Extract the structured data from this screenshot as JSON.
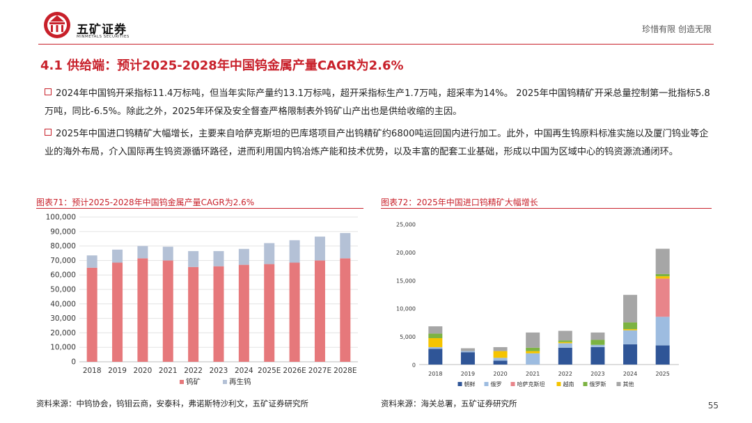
{
  "header": {
    "brand_cn": "五矿证券",
    "brand_en": "MINMETALS SECURITIES",
    "slogan": "珍惜有限  创造无限"
  },
  "title": "4.1 供给端：预计2025-2028年中国钨金属产量CAGR为2.6%",
  "bullets": [
    "2024年中国钨开采指标11.4万标吨，但当年实际产量约13.1万标吨，超开采指标生产1.7万吨，超采率为14%。 2025年中国钨精矿开采总量控制第一批指标5.8万吨，同比-6.5%。除此之外，2025年环保及安全督查严格限制表外钨矿山产出也是供给收缩的主因。",
    "2025年中国进口钨精矿大幅增长，主要来自哈萨克斯坦的巴库塔项目产出钨精矿约6800吨运回国内进行加工。此外，中国再生钨原料标准实施以及厦门钨业等企业的海外布局，介入国际再生钨资源循环路径，进而利用国内钨冶炼产能和技术优势，以及丰富的配套工业基础，形成以中国为区域中心的钨资源流通闭环。"
  ],
  "chart1_title": "图表71：预计2025-2028年中国钨金属产量CAGR为2.6%",
  "chart2_title": "图表72：2025年中国进口钨精矿大幅增长",
  "source1": "资料来源：中钨协会，钨钼云商，安泰科，弗诺斯特沙利文，五矿证券研究所",
  "source2": "资料来源：海关总署，五矿证券研究所",
  "page_number": "55",
  "chart_data": [
    {
      "type": "bar",
      "stacked": true,
      "title": "预计2025-2028年中国钨金属产量CAGR为2.6%",
      "categories": [
        "2018",
        "2019",
        "2020",
        "2021",
        "2022",
        "2023",
        "2024",
        "2025E",
        "2026E",
        "2027E",
        "2028E"
      ],
      "series": [
        {
          "name": "钨矿",
          "color": "#e6787b",
          "values": [
            65000,
            68500,
            71500,
            70000,
            65500,
            66000,
            67000,
            67500,
            68500,
            70000,
            71500
          ]
        },
        {
          "name": "再生钨",
          "color": "#b4c1d6",
          "values": [
            8500,
            9000,
            8500,
            9500,
            11000,
            10500,
            11000,
            14500,
            15500,
            16500,
            17500
          ]
        }
      ],
      "ylim": [
        0,
        100000
      ],
      "yticks": [
        0,
        10000,
        20000,
        30000,
        40000,
        50000,
        60000,
        70000,
        80000,
        90000,
        100000
      ],
      "ytick_labels": [
        "0",
        "10,000",
        "20,000",
        "30,000",
        "40,000",
        "50,000",
        "60,000",
        "70,000",
        "80,000",
        "90,000",
        "100,000"
      ],
      "legend": "bottom",
      "grid": true
    },
    {
      "type": "bar",
      "stacked": true,
      "title": "2025年中国进口钨精矿大幅增长",
      "categories": [
        "2018",
        "2019",
        "2020",
        "2021",
        "2022",
        "2023",
        "2024",
        "2025"
      ],
      "series": [
        {
          "name": "朝鲜",
          "color": "#2f5597",
          "values": [
            2800,
            2200,
            700,
            0,
            3000,
            3100,
            3600,
            3400
          ]
        },
        {
          "name": "俄罗",
          "color": "#9dbce0",
          "values": [
            300,
            200,
            500,
            2000,
            800,
            400,
            2500,
            5100
          ]
        },
        {
          "name": "哈萨克斯坦",
          "color": "#e8858a",
          "values": [
            0,
            0,
            0,
            0,
            0,
            0,
            0,
            6800
          ]
        },
        {
          "name": "越南",
          "color": "#f5c400",
          "values": [
            1600,
            0,
            1200,
            400,
            200,
            0,
            200,
            400
          ]
        },
        {
          "name": "俄罗斯",
          "color": "#7cb342",
          "values": [
            800,
            0,
            0,
            600,
            300,
            900,
            1200,
            400
          ]
        },
        {
          "name": "其他",
          "color": "#a6a6a6",
          "values": [
            1300,
            500,
            700,
            2700,
            1700,
            1300,
            4900,
            4500
          ]
        }
      ],
      "ylim": [
        0,
        25000
      ],
      "yticks": [
        0,
        5000,
        10000,
        15000,
        20000,
        25000
      ],
      "ytick_labels": [
        "0",
        "5,000",
        "10,000",
        "15,000",
        "20,000",
        "25,000"
      ],
      "legend": "bottom",
      "grid": false
    }
  ]
}
